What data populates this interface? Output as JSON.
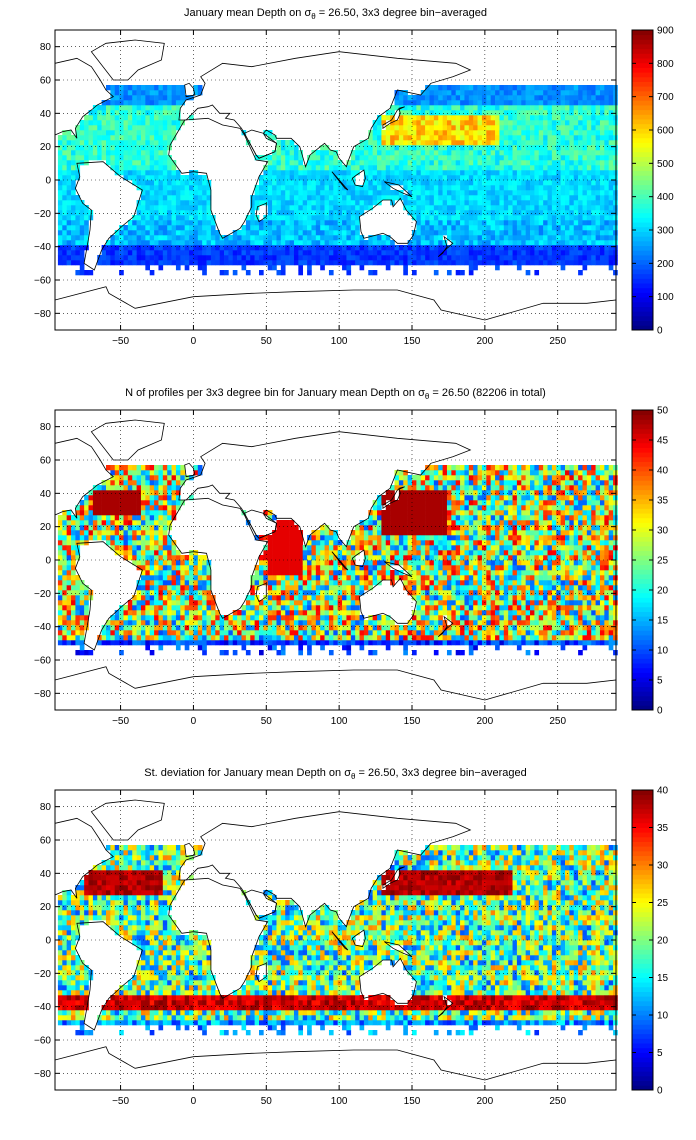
{
  "chart_data": [
    {
      "type": "heatmap",
      "title_pre": "January mean Depth on σ",
      "title_sub": "θ",
      "title_post": " = 26.50, 3x3 degree bin−averaged",
      "x_ticks": [
        "−50",
        "0",
        "50",
        "100",
        "150",
        "200",
        "250"
      ],
      "x_tick_values": [
        -50,
        0,
        50,
        100,
        150,
        200,
        250
      ],
      "y_ticks": [
        "80",
        "60",
        "40",
        "20",
        "0",
        "−20",
        "−40",
        "−60",
        "−80"
      ],
      "y_tick_values": [
        80,
        60,
        40,
        20,
        0,
        -20,
        -40,
        -60,
        -80
      ],
      "xlim": [
        -95,
        290
      ],
      "ylim": [
        -90,
        90
      ],
      "grid": true,
      "colormap": "jet",
      "colorbar_ticks": [
        "900",
        "800",
        "700",
        "600",
        "500",
        "400",
        "300",
        "200",
        "100",
        "0"
      ],
      "colorbar_values": [
        900,
        800,
        700,
        600,
        500,
        400,
        300,
        200,
        100,
        0
      ],
      "clim": [
        0,
        900
      ],
      "bin_size_deg": 3
    },
    {
      "type": "heatmap",
      "title_pre": "N of profiles per 3x3 degree bin for January mean Depth on σ",
      "title_sub": "θ",
      "title_post": " = 26.50 (82206 in total)",
      "x_ticks": [
        "−50",
        "0",
        "50",
        "100",
        "150",
        "200",
        "250"
      ],
      "x_tick_values": [
        -50,
        0,
        50,
        100,
        150,
        200,
        250
      ],
      "y_ticks": [
        "80",
        "60",
        "40",
        "20",
        "0",
        "−20",
        "−40",
        "−60",
        "−80"
      ],
      "y_tick_values": [
        80,
        60,
        40,
        20,
        0,
        -20,
        -40,
        -60,
        -80
      ],
      "xlim": [
        -95,
        290
      ],
      "ylim": [
        -90,
        90
      ],
      "grid": true,
      "colormap": "jet",
      "colorbar_ticks": [
        "50",
        "45",
        "40",
        "35",
        "30",
        "25",
        "20",
        "15",
        "10",
        "5",
        "0"
      ],
      "colorbar_values": [
        50,
        45,
        40,
        35,
        30,
        25,
        20,
        15,
        10,
        5,
        0
      ],
      "clim": [
        0,
        50
      ],
      "bin_size_deg": 3
    },
    {
      "type": "heatmap",
      "title_pre": "St. deviation for January mean Depth on σ",
      "title_sub": "θ",
      "title_post": " = 26.50, 3x3 degree bin−averaged",
      "x_ticks": [
        "−50",
        "0",
        "50",
        "100",
        "150",
        "200",
        "250"
      ],
      "x_tick_values": [
        -50,
        0,
        50,
        100,
        150,
        200,
        250
      ],
      "y_ticks": [
        "80",
        "60",
        "40",
        "20",
        "0",
        "−20",
        "−40",
        "−60",
        "−80"
      ],
      "y_tick_values": [
        80,
        60,
        40,
        20,
        0,
        -20,
        -40,
        -60,
        -80
      ],
      "xlim": [
        -95,
        290
      ],
      "ylim": [
        -90,
        90
      ],
      "grid": true,
      "colormap": "jet",
      "colorbar_ticks": [
        "40",
        "35",
        "30",
        "25",
        "20",
        "15",
        "10",
        "5",
        "0"
      ],
      "colorbar_values": [
        40,
        35,
        30,
        25,
        20,
        15,
        10,
        5,
        0
      ],
      "clim": [
        0,
        40
      ],
      "bin_size_deg": 3
    }
  ]
}
